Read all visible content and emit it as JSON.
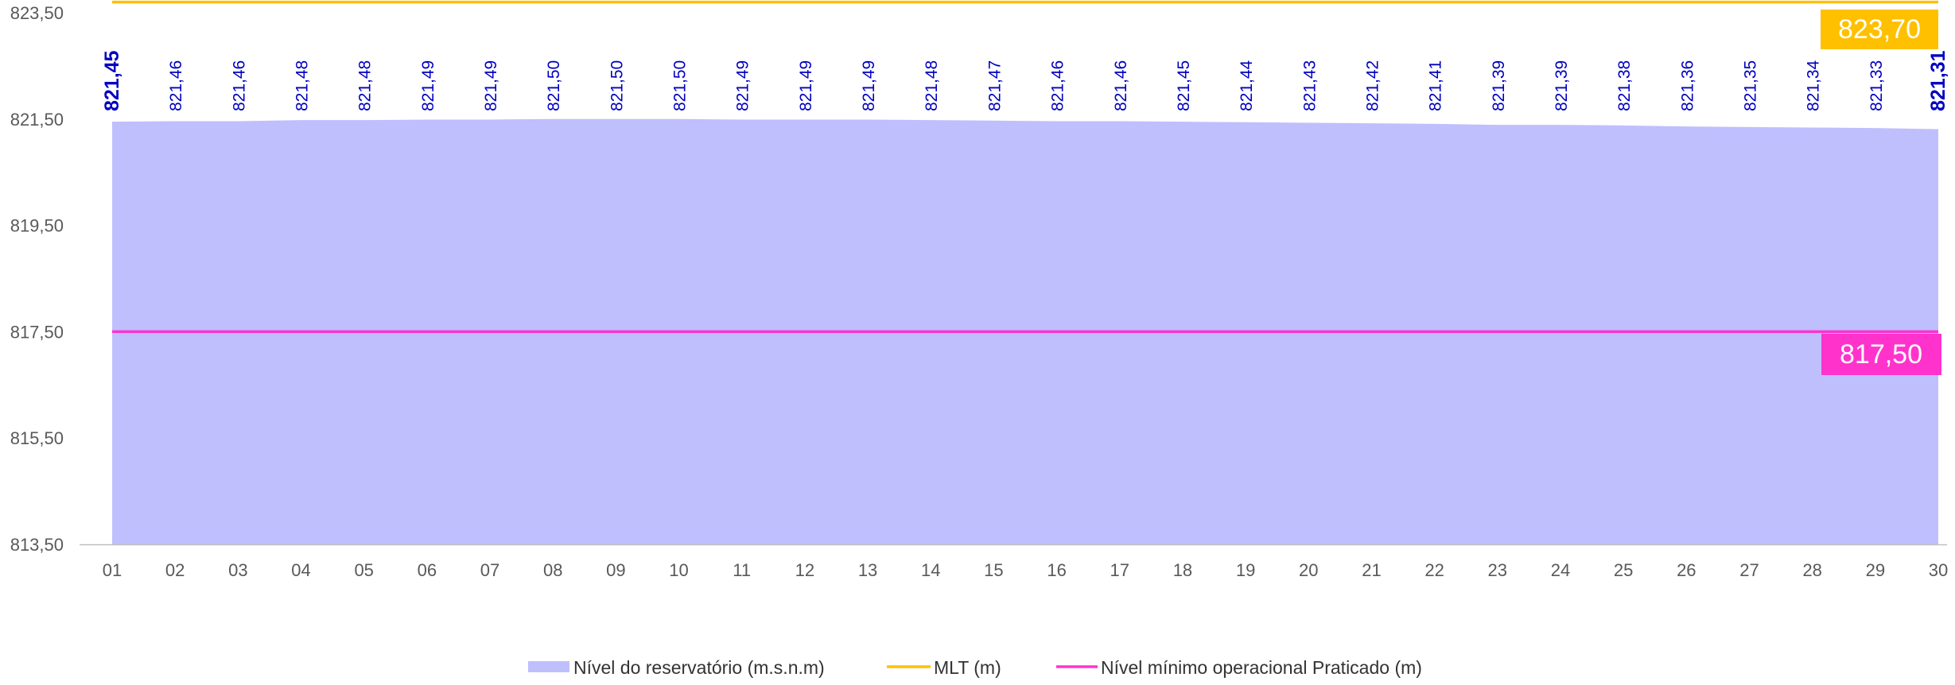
{
  "chart_data": {
    "type": "area",
    "title": "",
    "xlabel": "",
    "ylabel": "",
    "categories": [
      "01",
      "02",
      "03",
      "04",
      "05",
      "06",
      "07",
      "08",
      "09",
      "10",
      "11",
      "12",
      "13",
      "14",
      "15",
      "16",
      "17",
      "18",
      "19",
      "20",
      "21",
      "22",
      "23",
      "24",
      "25",
      "26",
      "27",
      "28",
      "29",
      "30"
    ],
    "ylim": [
      813.5,
      823.5
    ],
    "yticks": [
      823.5,
      821.5,
      819.5,
      817.5,
      815.5,
      813.5
    ],
    "ytick_labels": [
      "823,50",
      "821,50",
      "819,50",
      "817,50",
      "815,50",
      "813,50"
    ],
    "series": [
      {
        "name": "Nível do reservatório (m.s.n.m)",
        "kind": "area",
        "color": "#bfbffe",
        "values": [
          821.45,
          821.46,
          821.46,
          821.48,
          821.48,
          821.49,
          821.49,
          821.5,
          821.5,
          821.5,
          821.49,
          821.49,
          821.49,
          821.48,
          821.47,
          821.46,
          821.46,
          821.45,
          821.44,
          821.43,
          821.42,
          821.41,
          821.39,
          821.39,
          821.38,
          821.36,
          821.35,
          821.34,
          821.33,
          821.31
        ],
        "labels": [
          "821,45",
          "821,46",
          "821,46",
          "821,48",
          "821,48",
          "821,49",
          "821,49",
          "821,50",
          "821,50",
          "821,50",
          "821,49",
          "821,49",
          "821,49",
          "821,48",
          "821,47",
          "821,46",
          "821,46",
          "821,45",
          "821,44",
          "821,43",
          "821,42",
          "821,41",
          "821,39",
          "821,39",
          "821,38",
          "821,36",
          "821,35",
          "821,34",
          "821,33",
          "821,31"
        ]
      },
      {
        "name": "MLT (m)",
        "kind": "line",
        "color": "#ffc000",
        "value": 823.7,
        "label": "823,70"
      },
      {
        "name": "Nível mínimo operacional Praticado (m)",
        "kind": "line",
        "color": "#ff33cc",
        "value": 817.5,
        "label": "817,50"
      }
    ],
    "grid": false,
    "legend": "bottom"
  }
}
